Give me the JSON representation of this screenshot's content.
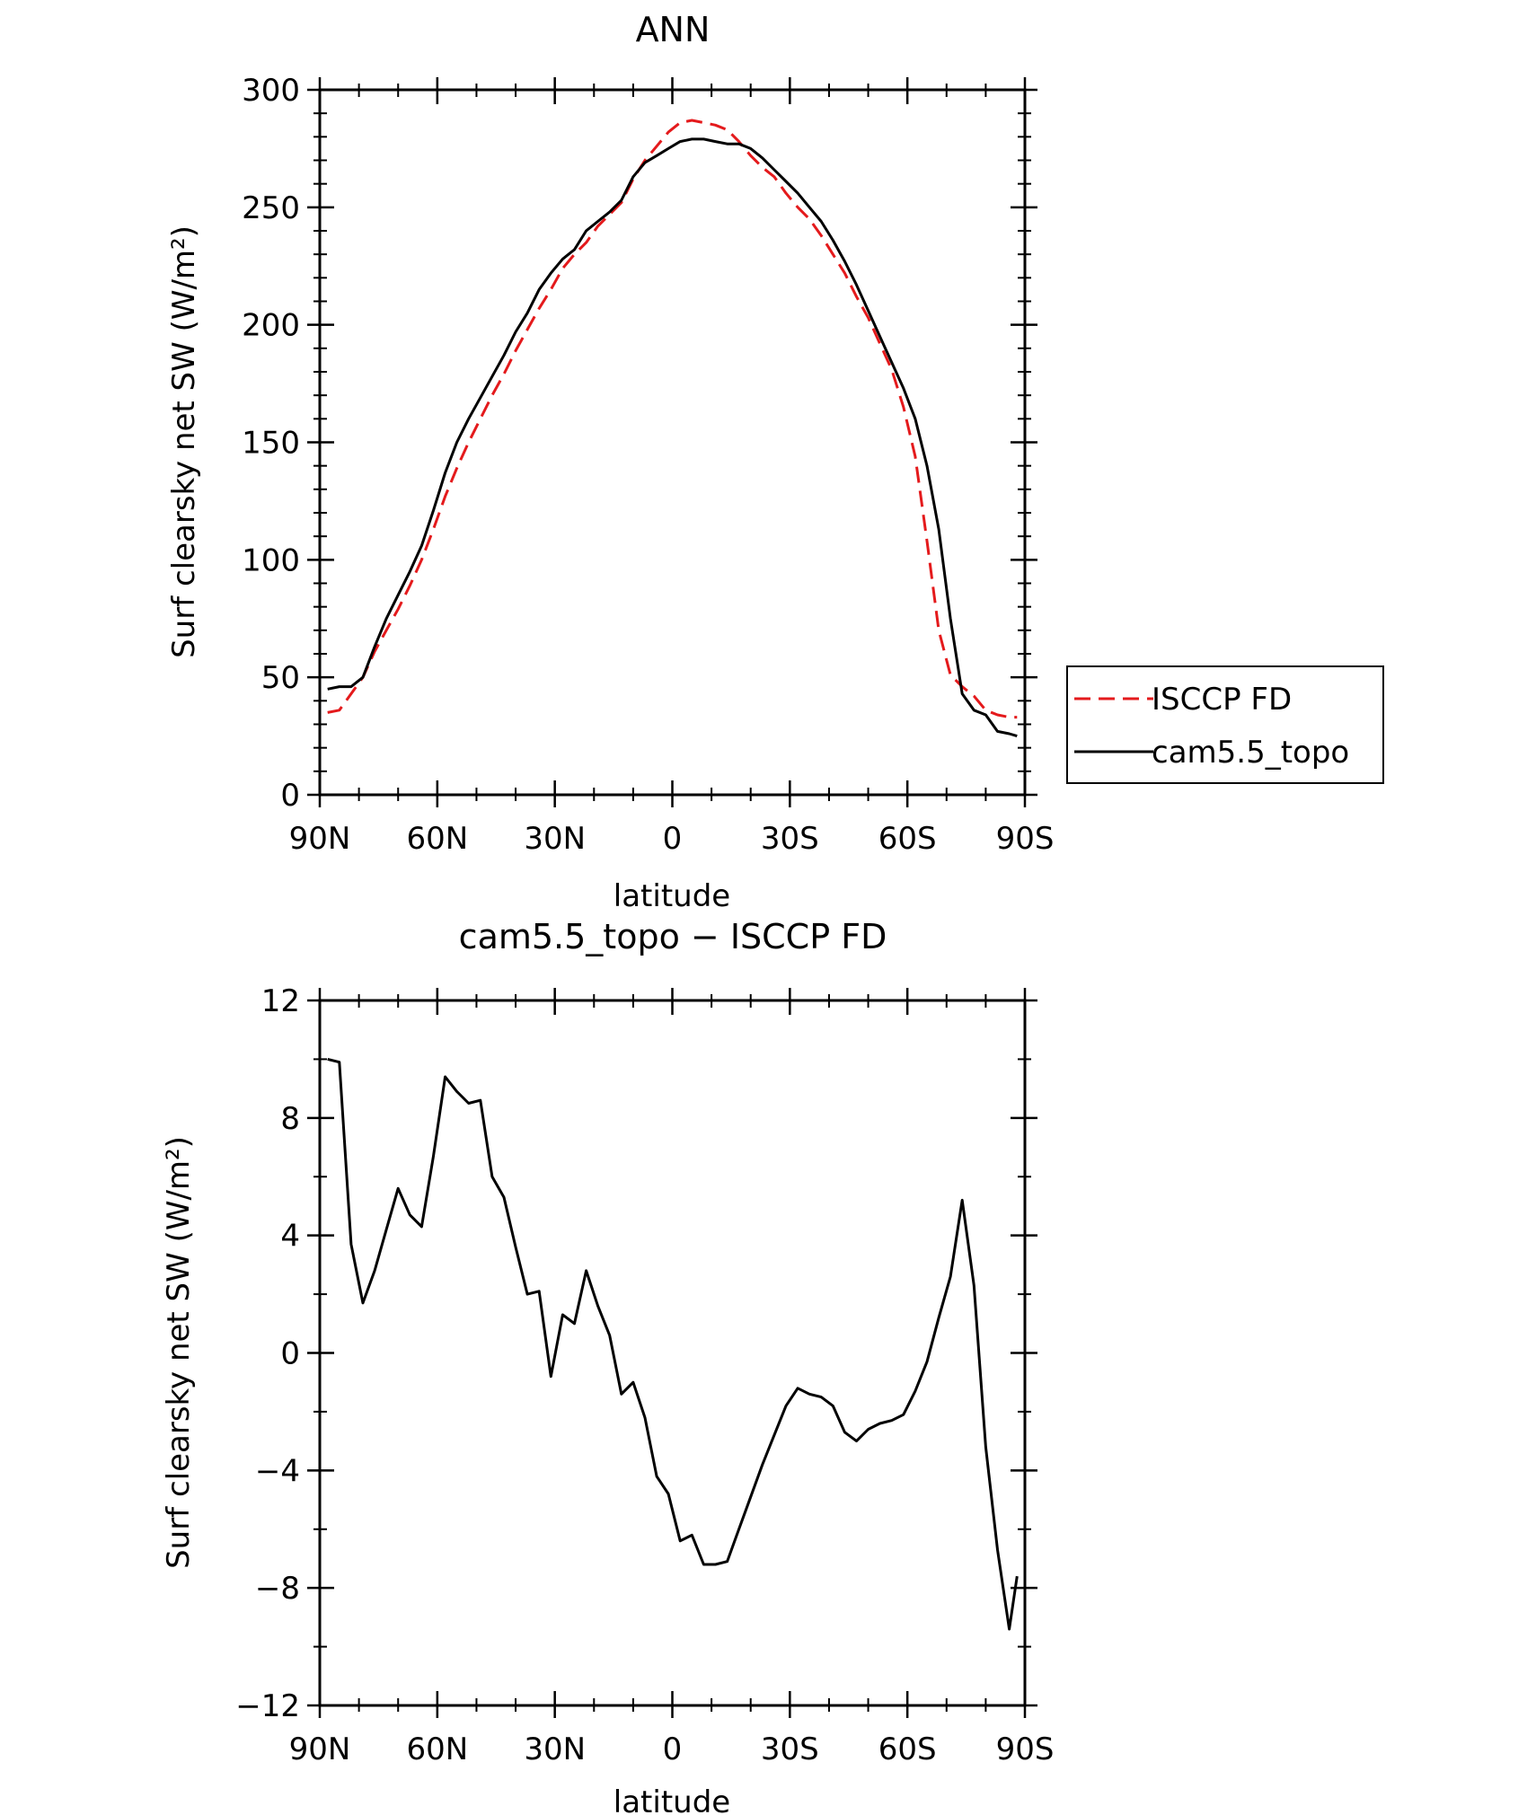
{
  "chart_data": [
    {
      "type": "line",
      "title": "ANN",
      "xlabel": "latitude",
      "ylabel": "Surf clearsky net SW (W/m²)",
      "xlim": [
        90,
        -90
      ],
      "ylim": [
        0,
        300
      ],
      "x_ticks": [
        {
          "value": 90,
          "label": "90N"
        },
        {
          "value": 60,
          "label": "60N"
        },
        {
          "value": 30,
          "label": "30N"
        },
        {
          "value": 0,
          "label": "0"
        },
        {
          "value": -30,
          "label": "30S"
        },
        {
          "value": -60,
          "label": "60S"
        },
        {
          "value": -90,
          "label": "90S"
        }
      ],
      "y_ticks": [
        {
          "value": 0,
          "label": "0"
        },
        {
          "value": 50,
          "label": "50"
        },
        {
          "value": 100,
          "label": "100"
        },
        {
          "value": 150,
          "label": "150"
        },
        {
          "value": 200,
          "label": "200"
        },
        {
          "value": 250,
          "label": "250"
        },
        {
          "value": 300,
          "label": "300"
        }
      ],
      "legend": "right",
      "series": [
        {
          "name": "ISCCP FD",
          "color": "#e41a1c",
          "dash": true,
          "x": [
            88,
            85,
            82,
            79,
            76,
            73,
            70,
            67,
            64,
            61,
            58,
            55,
            52,
            49,
            46,
            43,
            40,
            37,
            34,
            31,
            28,
            25,
            22,
            19,
            16,
            13,
            10,
            7,
            4,
            1,
            -2,
            -5,
            -8,
            -11,
            -14,
            -17,
            -20,
            -23,
            -26,
            -29,
            -32,
            -35,
            -38,
            -41,
            -44,
            -47,
            -50,
            -53,
            -56,
            -59,
            -62,
            -65,
            -68,
            -71,
            -74,
            -77,
            -80,
            -83,
            -86,
            -88
          ],
          "y": [
            35,
            36,
            43,
            50,
            61,
            70,
            79,
            89,
            100,
            113,
            127,
            139,
            150,
            160,
            170,
            179,
            189,
            198,
            207,
            215,
            224,
            230,
            235,
            242,
            247,
            252,
            262,
            270,
            276,
            282,
            286,
            287,
            286,
            285,
            283,
            278,
            272,
            267,
            263,
            256,
            250,
            245,
            238,
            230,
            222,
            212,
            203,
            192,
            181,
            165,
            144,
            108,
            70,
            51,
            46,
            42,
            36,
            34,
            33,
            33
          ]
        },
        {
          "name": "cam5.5_topo",
          "color": "#000000",
          "dash": false,
          "x": [
            88,
            85,
            82,
            79,
            76,
            73,
            70,
            67,
            64,
            61,
            58,
            55,
            52,
            49,
            46,
            43,
            40,
            37,
            34,
            31,
            28,
            25,
            22,
            19,
            16,
            13,
            10,
            7,
            4,
            1,
            -2,
            -5,
            -8,
            -11,
            -14,
            -17,
            -20,
            -23,
            -26,
            -29,
            -32,
            -35,
            -38,
            -41,
            -44,
            -47,
            -50,
            -53,
            -56,
            -59,
            -62,
            -65,
            -68,
            -71,
            -74,
            -77,
            -80,
            -83,
            -86,
            -88
          ],
          "y": [
            45,
            46,
            46,
            50,
            63,
            75,
            85,
            95,
            106,
            121,
            137,
            150,
            160,
            169,
            178,
            187,
            197,
            205,
            215,
            222,
            228,
            232,
            240,
            244,
            248,
            253,
            263,
            269,
            272,
            275,
            278,
            279,
            279,
            278,
            277,
            277,
            275,
            271,
            266,
            261,
            256,
            250,
            244,
            236,
            227,
            217,
            206,
            195,
            184,
            173,
            160,
            140,
            113,
            75,
            43,
            36,
            34,
            27,
            26,
            25
          ]
        }
      ]
    },
    {
      "type": "line",
      "title": "cam5.5_topo − ISCCP FD",
      "xlabel": "latitude",
      "ylabel": "Surf clearsky net SW (W/m²)",
      "xlim": [
        90,
        -90
      ],
      "ylim": [
        -12,
        12
      ],
      "x_ticks": [
        {
          "value": 90,
          "label": "90N"
        },
        {
          "value": 60,
          "label": "60N"
        },
        {
          "value": 30,
          "label": "30N"
        },
        {
          "value": 0,
          "label": "0"
        },
        {
          "value": -30,
          "label": "30S"
        },
        {
          "value": -60,
          "label": "60S"
        },
        {
          "value": -90,
          "label": "90S"
        }
      ],
      "y_ticks": [
        {
          "value": 12,
          "label": "12"
        },
        {
          "value": 8,
          "label": "8"
        },
        {
          "value": 4,
          "label": "4"
        },
        {
          "value": 0,
          "label": "0"
        },
        {
          "value": -4,
          "label": "−4"
        },
        {
          "value": -8,
          "label": "−8"
        },
        {
          "value": -12,
          "label": "−12"
        }
      ],
      "series": [
        {
          "color": "#000000",
          "dash": false,
          "x": [
            88,
            85,
            82,
            79,
            76,
            73,
            70,
            67,
            64,
            61,
            58,
            55,
            52,
            49,
            46,
            43,
            40,
            37,
            34,
            31,
            28,
            25,
            22,
            19,
            16,
            13,
            10,
            7,
            4,
            1,
            -2,
            -5,
            -8,
            -11,
            -14,
            -17,
            -20,
            -23,
            -26,
            -29,
            -32,
            -35,
            -38,
            -41,
            -44,
            -47,
            -50,
            -53,
            -56,
            -59,
            -62,
            -65,
            -68,
            -71,
            -74,
            -77,
            -80,
            -83,
            -86,
            -88
          ],
          "y": [
            10,
            9.9,
            3.7,
            1.7,
            2.8,
            4.2,
            5.6,
            4.7,
            4.3,
            6.7,
            9.4,
            8.9,
            8.5,
            8.6,
            6.0,
            5.3,
            3.6,
            2.0,
            2.1,
            -0.8,
            1.3,
            1.0,
            2.8,
            1.6,
            0.6,
            -1.4,
            -1.0,
            -2.2,
            -4.2,
            -4.8,
            -6.4,
            -6.2,
            -7.2,
            -7.2,
            -7.1,
            -6.0,
            -4.9,
            -3.8,
            -2.8,
            -1.8,
            -1.2,
            -1.4,
            -1.5,
            -1.8,
            -2.7,
            -3.0,
            -2.6,
            -2.4,
            -2.3,
            -2.1,
            -1.3,
            -0.3,
            1.2,
            2.6,
            5.2,
            2.3,
            -3.2,
            -6.7,
            -9.4,
            -7.6
          ]
        }
      ]
    }
  ]
}
